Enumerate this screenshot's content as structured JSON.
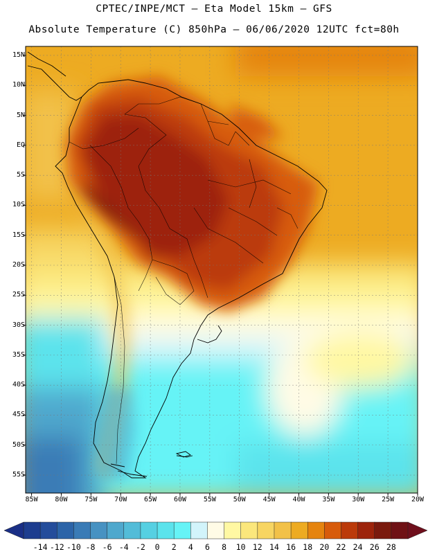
{
  "header": {
    "line1": "CPTEC/INPE/MCT —  Eta Model 15km — GFS",
    "line2": "Absolute Temperature (C) 850hPa — 06/06/2020 12UTC fct=80h"
  },
  "map": {
    "lat_labels": [
      "15N",
      "10N",
      "5N",
      "EQ",
      "5S",
      "10S",
      "15S",
      "20S",
      "25S",
      "30S",
      "35S",
      "40S",
      "45S",
      "50S",
      "55S"
    ],
    "lon_labels": [
      "85W",
      "80W",
      "75W",
      "70W",
      "65W",
      "60W",
      "55W",
      "50W",
      "45W",
      "40W",
      "35W",
      "30W",
      "25W",
      "20W"
    ],
    "lat_values": [
      15,
      10,
      5,
      0,
      -5,
      -10,
      -15,
      -20,
      -25,
      -30,
      -35,
      -40,
      -45,
      -50,
      -55
    ],
    "lon_values": [
      -85,
      -80,
      -75,
      -70,
      -65,
      -60,
      -55,
      -50,
      -45,
      -40,
      -35,
      -30,
      -25,
      -20
    ],
    "extent": {
      "lon_min": -86,
      "lon_max": -20,
      "lat_min": -58,
      "lat_max": 16.5
    }
  },
  "colorbar": {
    "labels": [
      "-14",
      "-12",
      "-10",
      "-8",
      "-6",
      "-4",
      "-2",
      "0",
      "2",
      "4",
      "6",
      "8",
      "10",
      "12",
      "14",
      "16",
      "18",
      "20",
      "22",
      "24",
      "26",
      "28"
    ],
    "colors": [
      "#1d3d8f",
      "#244d9b",
      "#2c64a8",
      "#3a7bb6",
      "#4792c2",
      "#4fa8cd",
      "#53bcd8",
      "#56d0e2",
      "#5be3ec",
      "#66f3f6",
      "#d2f4fb",
      "#fffbe6",
      "#fff8a3",
      "#fbe77c",
      "#f7d562",
      "#f2c148",
      "#edab22",
      "#e5840f",
      "#d75b0b",
      "#bb3a0a",
      "#9d240c",
      "#7a1a0e",
      "#6f1115"
    ]
  }
}
